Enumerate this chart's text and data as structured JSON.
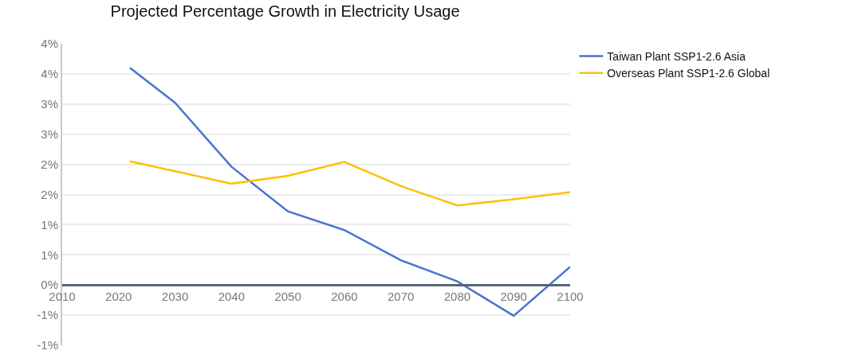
{
  "chart_data": {
    "type": "line",
    "title": "Projected Percentage Growth in Electricity Usage",
    "x": [
      2022,
      2030,
      2040,
      2050,
      2060,
      2070,
      2080,
      2090,
      2100
    ],
    "series": [
      {
        "name": "Taiwan Plant SSP1-2.6 Asia",
        "color": "#4a74d0",
        "values": [
          3.6,
          3.02,
          1.96,
          1.22,
          0.91,
          0.41,
          0.06,
          -0.51,
          0.3
        ]
      },
      {
        "name": "Overseas Plant SSP1-2.6 Global",
        "color": "#ffc000",
        "x": [
          2022,
          2040,
          2050,
          2060,
          2070,
          2080,
          2090,
          2100
        ],
        "values": [
          2.05,
          1.68,
          1.81,
          2.04,
          1.64,
          1.32,
          1.42,
          1.54
        ]
      }
    ],
    "xlim": [
      2010,
      2100
    ],
    "xticks": [
      2010,
      2020,
      2030,
      2040,
      2050,
      2060,
      2070,
      2080,
      2090,
      2100
    ],
    "ylim": [
      -1,
      4
    ],
    "yticks": [
      {
        "value": -1,
        "label": "-1%"
      },
      {
        "value": -0.5,
        "label": "-1%"
      },
      {
        "value": 0,
        "label": "0%"
      },
      {
        "value": 0.5,
        "label": "1%"
      },
      {
        "value": 1,
        "label": "1%"
      },
      {
        "value": 1.5,
        "label": "2%"
      },
      {
        "value": 2,
        "label": "2%"
      },
      {
        "value": 2.5,
        "label": "3%"
      },
      {
        "value": 3,
        "label": "3%"
      },
      {
        "value": 3.5,
        "label": "4%"
      },
      {
        "value": 4,
        "label": "4%"
      }
    ],
    "grid": "y",
    "legend": "top right",
    "marker": "none",
    "line_style": "solid"
  }
}
